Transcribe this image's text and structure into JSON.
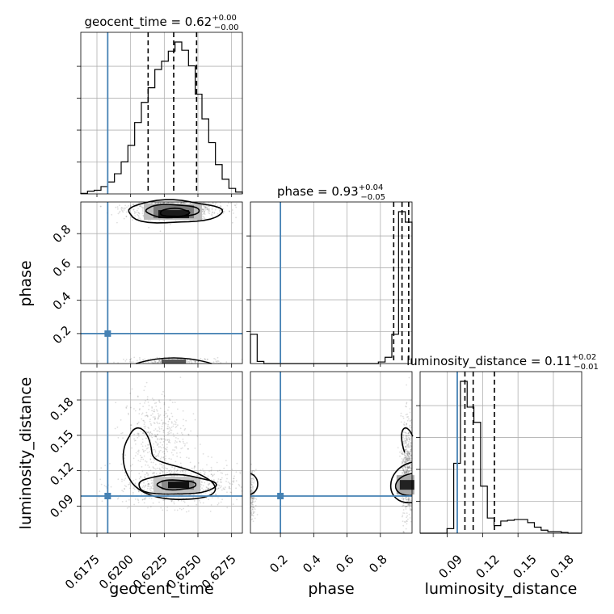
{
  "chart_data": {
    "type": "corner",
    "parameters": [
      "geocent_time",
      "phase",
      "luminosity_distance"
    ],
    "truths": {
      "geocent_time": 0.6183,
      "phase": 0.2,
      "luminosity_distance": 0.0985
    },
    "truth_color": "#4682b4",
    "grid": true,
    "titles": [
      {
        "main": "geocent_time = 0.62",
        "sup": "+0.00",
        "sub": "−0.00"
      },
      {
        "main": "phase = 0.93",
        "sup": "+0.04",
        "sub": "−0.05"
      },
      {
        "main": "luminosity_distance = 0.11",
        "sup": "+0.02",
        "sub": "−0.01"
      }
    ],
    "axis_labels": {
      "x": [
        "geocent_time",
        "phase",
        "luminosity_distance"
      ],
      "y": [
        "phase",
        "luminosity_distance"
      ]
    },
    "ticks": {
      "geocent_time": [
        "0.6175",
        "0.6200",
        "0.6225",
        "0.6250",
        "0.6275"
      ],
      "phase_x": [
        "0.2",
        "0.4",
        "0.6",
        "0.8"
      ],
      "phase_y": [
        "0.2",
        "0.4",
        "0.6",
        "0.8"
      ],
      "luminosity_distance_x": [
        "0.09",
        "0.12",
        "0.15",
        "0.18"
      ],
      "luminosity_distance_y": [
        "0.09",
        "0.12",
        "0.15",
        "0.18"
      ]
    },
    "ranges": {
      "geocent_time": [
        0.6163,
        0.6283
      ],
      "phase": [
        0.02,
        0.99
      ],
      "luminosity_distance": [
        0.067,
        0.204
      ]
    },
    "hist_geocent_time": {
      "bin_edges": [
        0.6163,
        0.6168,
        0.6173,
        0.6178,
        0.6183,
        0.6188,
        0.6193,
        0.6198,
        0.6203,
        0.6208,
        0.6213,
        0.6218,
        0.6223,
        0.6228,
        0.6233,
        0.6238,
        0.6243,
        0.6248,
        0.6253,
        0.6258,
        0.6263,
        0.6268,
        0.6273,
        0.6278,
        0.6283
      ],
      "counts": [
        0.3,
        1.5,
        2.0,
        4.0,
        6.5,
        11.0,
        17.5,
        26.5,
        39.0,
        50.0,
        58.0,
        68.0,
        72.5,
        78.0,
        83.0,
        78.5,
        70.0,
        54.5,
        41.0,
        28.0,
        16.0,
        8.0,
        3.0,
        1.0
      ],
      "quantiles": [
        0.6213,
        0.6232,
        0.6249
      ]
    },
    "hist_phase": {
      "bin_edges": [
        0.02,
        0.0604,
        0.1008,
        0.1413,
        0.1817,
        0.2221,
        0.2625,
        0.3029,
        0.3433,
        0.3838,
        0.4242,
        0.4646,
        0.505,
        0.5454,
        0.5858,
        0.6263,
        0.6667,
        0.7071,
        0.7475,
        0.7879,
        0.8283,
        0.8688,
        0.9092,
        0.9496,
        0.99
      ],
      "counts": [
        2.8,
        0.2,
        0,
        0,
        0,
        0,
        0,
        0,
        0,
        0,
        0,
        0,
        0,
        0,
        0,
        0,
        0,
        0,
        0,
        0.15,
        0.6,
        2.8,
        14.5,
        13.5
      ],
      "quantiles": [
        0.88,
        0.93,
        0.97
      ]
    },
    "hist_luminosity_distance": {
      "bin_edges": [
        0.067,
        0.0727,
        0.0784,
        0.0841,
        0.0898,
        0.0955,
        0.1012,
        0.1069,
        0.1126,
        0.1183,
        0.124,
        0.1297,
        0.1354,
        0.1411,
        0.1468,
        0.1525,
        0.1582,
        0.1639,
        0.1696,
        0.1753,
        0.181,
        0.1867,
        0.1924,
        0.1981,
        0.204
      ],
      "counts": [
        0,
        0,
        0,
        0,
        0.3,
        4.6,
        10.0,
        8.3,
        7.3,
        3.1,
        1.0,
        0.5,
        0.8,
        0.85,
        0.9,
        0.9,
        0.7,
        0.4,
        0.2,
        0.1,
        0.1,
        0.05,
        0,
        0
      ],
      "quantiles": [
        0.105,
        0.112,
        0.13
      ]
    }
  }
}
